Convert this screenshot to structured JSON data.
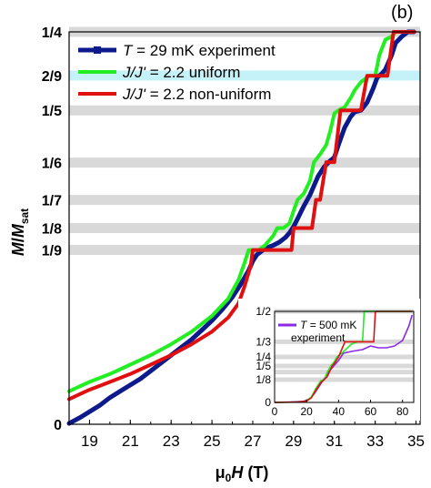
{
  "panel_label": "(b)",
  "colors": {
    "experiment": "#0d1a8c",
    "uniform": "#22ee22",
    "nonuniform": "#e01010",
    "band_grey": "#d9d9d9",
    "band_cyan": "#c4f2f8",
    "inset_experiment": "#8a2be2"
  },
  "chart_data": [
    {
      "type": "line",
      "xlabel_mu": "μ",
      "xlabel_sub": "0",
      "xlabel_H": "H",
      "xlabel_unit": " (T)",
      "ylabel_M": "M",
      "ylabel_slash": "/",
      "ylabel_M2": "M",
      "ylabel_sub": "sat",
      "xlim": [
        18,
        35.2
      ],
      "ylim": [
        0,
        0.25
      ],
      "xticks": [
        19,
        21,
        23,
        25,
        27,
        29,
        31,
        33,
        35
      ],
      "xtick_labels": [
        "19",
        "21",
        "23",
        "25",
        "27",
        "29",
        "31",
        "33",
        "35"
      ],
      "yticks": [
        0,
        0.1111,
        0.125,
        0.1429,
        0.1667,
        0.2,
        0.2222,
        0.25
      ],
      "ytick_labels": [
        "0",
        "1/9",
        "1/8",
        "1/7",
        "1/6",
        "1/5",
        "2/9",
        "1/4"
      ],
      "plateau_bands": [
        {
          "y": 0.1111,
          "color": "grey"
        },
        {
          "y": 0.125,
          "color": "grey"
        },
        {
          "y": 0.1429,
          "color": "grey"
        },
        {
          "y": 0.1667,
          "color": "grey"
        },
        {
          "y": 0.2,
          "color": "grey"
        },
        {
          "y": 0.2222,
          "color": "cyan"
        },
        {
          "y": 0.25,
          "color": "grey"
        }
      ],
      "legend": {
        "entries": [
          {
            "key": "experiment",
            "italic": "T",
            "text": " = 29 mK experiment"
          },
          {
            "key": "uniform",
            "italic": "J/J'",
            "text": " = 2.2 uniform"
          },
          {
            "key": "nonuniform",
            "italic": "J/J'",
            "text": " = 2.2 non-uniform"
          }
        ]
      },
      "series": [
        {
          "name": "T = 29 mK experiment",
          "key": "experiment",
          "x": [
            18.0,
            18.5,
            19.0,
            19.5,
            20.0,
            20.5,
            21.0,
            21.5,
            22.0,
            22.5,
            23.0,
            23.5,
            24.0,
            24.5,
            25.0,
            25.5,
            26.0,
            26.4,
            26.8,
            27.0,
            27.2,
            27.5,
            27.8,
            28.0,
            28.3,
            28.6,
            28.8,
            29.0,
            29.2,
            29.5,
            29.8,
            30.0,
            30.2,
            30.5,
            30.8,
            31.0,
            31.2,
            31.5,
            31.8,
            32.0,
            32.3,
            32.6,
            32.9,
            33.1,
            33.3,
            33.5,
            33.8,
            34.0,
            34.3,
            34.6,
            34.9
          ],
          "y": [
            0.0005,
            0.004,
            0.008,
            0.012,
            0.017,
            0.021,
            0.025,
            0.029,
            0.034,
            0.039,
            0.044,
            0.049,
            0.054,
            0.06,
            0.066,
            0.073,
            0.081,
            0.089,
            0.098,
            0.104,
            0.108,
            0.111,
            0.113,
            0.114,
            0.116,
            0.119,
            0.122,
            0.126,
            0.131,
            0.139,
            0.146,
            0.152,
            0.158,
            0.164,
            0.168,
            0.17,
            0.178,
            0.189,
            0.196,
            0.199,
            0.2,
            0.205,
            0.214,
            0.221,
            0.223,
            0.226,
            0.235,
            0.243,
            0.247,
            0.25,
            0.25
          ]
        },
        {
          "name": "J/J' = 2.2 uniform",
          "key": "uniform",
          "x": [
            18.0,
            18.5,
            19.0,
            20.0,
            21.0,
            22.0,
            23.0,
            24.0,
            25.0,
            25.8,
            26.3,
            26.6,
            26.8,
            27.0,
            27.3,
            27.6,
            28.0,
            28.2,
            28.5,
            28.8,
            29.0,
            29.2,
            29.5,
            29.8,
            30.0,
            30.3,
            30.6,
            30.8,
            31.0,
            31.2,
            31.5,
            31.8,
            32.0,
            32.3,
            32.7,
            33.0,
            33.2,
            33.5,
            33.8,
            34.0,
            34.2,
            34.5,
            34.9
          ],
          "y": [
            0.021,
            0.024,
            0.027,
            0.032,
            0.038,
            0.044,
            0.051,
            0.059,
            0.069,
            0.08,
            0.092,
            0.103,
            0.111,
            0.111,
            0.111,
            0.114,
            0.12,
            0.125,
            0.125,
            0.128,
            0.136,
            0.143,
            0.147,
            0.155,
            0.167,
            0.172,
            0.178,
            0.187,
            0.198,
            0.2,
            0.202,
            0.208,
            0.213,
            0.218,
            0.222,
            0.222,
            0.235,
            0.245,
            0.247,
            0.25,
            0.25,
            0.25,
            0.25
          ]
        },
        {
          "name": "J/J' = 2.2 non-uniform",
          "key": "nonuniform",
          "x": [
            18.0,
            18.5,
            19.0,
            20.0,
            21.0,
            22.0,
            23.0,
            24.0,
            25.0,
            25.8,
            26.3,
            26.6,
            26.9,
            27.0,
            27.3,
            27.6,
            28.0,
            28.5,
            28.9,
            29.0,
            29.3,
            29.6,
            29.9,
            30.1,
            30.3,
            30.6,
            30.9,
            31.0,
            31.3,
            31.8,
            32.0,
            32.3,
            32.6,
            33.0,
            33.4,
            33.6,
            33.9,
            34.0,
            34.2,
            34.5,
            34.9
          ],
          "y": [
            0.016,
            0.019,
            0.022,
            0.027,
            0.032,
            0.038,
            0.044,
            0.051,
            0.059,
            0.068,
            0.077,
            0.088,
            0.101,
            0.111,
            0.111,
            0.111,
            0.111,
            0.111,
            0.111,
            0.125,
            0.125,
            0.125,
            0.125,
            0.143,
            0.143,
            0.167,
            0.167,
            0.167,
            0.2,
            0.2,
            0.2,
            0.2,
            0.222,
            0.222,
            0.222,
            0.222,
            0.25,
            0.25,
            0.25,
            0.25,
            0.25
          ]
        }
      ]
    },
    {
      "type": "line",
      "xlim": [
        0,
        87
      ],
      "ylim": [
        0,
        0.5
      ],
      "xticks": [
        0,
        20,
        40,
        60,
        80
      ],
      "xtick_labels": [
        "0",
        "20",
        "40",
        "60",
        "80"
      ],
      "yticks": [
        0,
        0.125,
        0.2,
        0.25,
        0.3333,
        0.5
      ],
      "ytick_labels": [
        "0",
        "1/8",
        "1/5",
        "1/4",
        "1/3",
        "1/2"
      ],
      "bands": [
        0.125,
        0.1667,
        0.2,
        0.25,
        0.3333,
        0.5
      ],
      "legend": {
        "italic": "T",
        "line1": "= 500 mK",
        "line2": "experiment"
      },
      "series": [
        {
          "name": "T = 500 mK experiment",
          "key": "inset_experiment",
          "x": [
            0,
            10,
            18,
            22,
            25,
            28,
            31,
            34,
            37,
            40,
            43,
            48,
            55,
            60,
            65,
            70,
            75,
            80,
            84,
            86
          ],
          "y": [
            0.0,
            0.002,
            0.006,
            0.02,
            0.05,
            0.09,
            0.13,
            0.17,
            0.2,
            0.23,
            0.27,
            0.28,
            0.29,
            0.31,
            0.3,
            0.3,
            0.31,
            0.34,
            0.42,
            0.48
          ]
        },
        {
          "name": "uniform",
          "key": "uniform",
          "x": [
            0,
            15,
            20,
            23,
            26,
            29,
            31,
            33,
            35,
            37,
            39,
            42,
            48,
            52,
            55,
            56,
            60,
            64,
            65,
            70,
            86
          ],
          "y": [
            0.0,
            0.002,
            0.01,
            0.03,
            0.08,
            0.12,
            0.125,
            0.167,
            0.2,
            0.22,
            0.25,
            0.27,
            0.32,
            0.333,
            0.333,
            0.5,
            0.5,
            0.5,
            0.5,
            0.5,
            0.5
          ]
        },
        {
          "name": "non-uniform",
          "key": "nonuniform",
          "x": [
            0,
            15,
            20,
            23,
            26,
            29,
            31,
            33,
            36,
            38,
            40,
            44,
            50,
            55,
            62,
            63,
            66,
            70,
            75,
            86
          ],
          "y": [
            0.0,
            0.002,
            0.008,
            0.025,
            0.07,
            0.11,
            0.125,
            0.143,
            0.2,
            0.222,
            0.25,
            0.333,
            0.333,
            0.333,
            0.333,
            0.5,
            0.5,
            0.5,
            0.5,
            0.5
          ]
        }
      ]
    }
  ]
}
